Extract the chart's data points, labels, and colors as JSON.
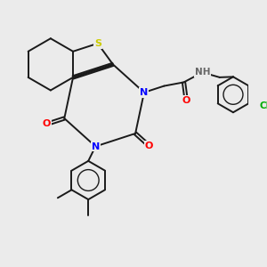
{
  "background_color": "#ebebeb",
  "atom_colors": {
    "C": "#1a1a1a",
    "N": "#0000ff",
    "O": "#ff0000",
    "S": "#cccc00",
    "Cl": "#00aa00",
    "H": "#666666"
  },
  "bond_color": "#1a1a1a",
  "bond_lw": 1.4,
  "figsize": [
    3.0,
    3.0
  ],
  "dpi": 100
}
